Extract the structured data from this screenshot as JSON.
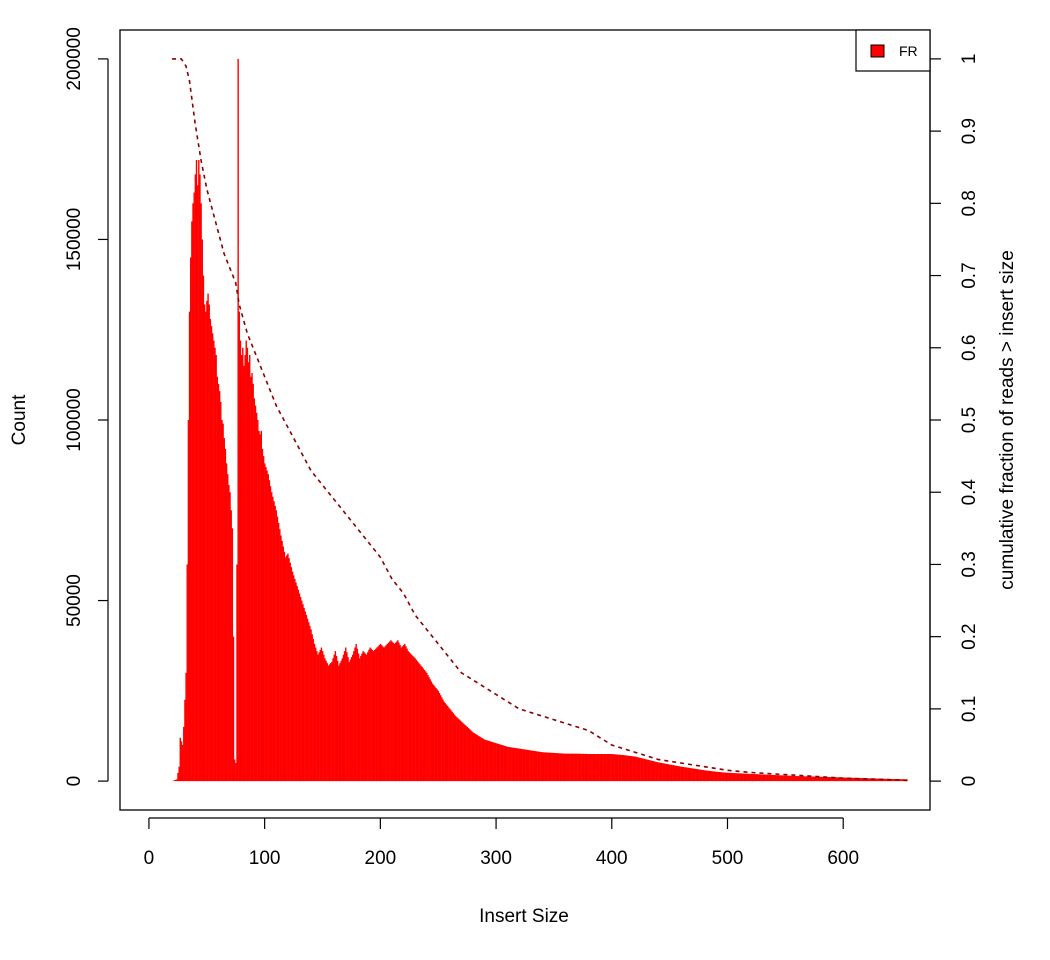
{
  "chart_data": {
    "type": "bar",
    "xlabel": "Insert Size",
    "ylabel": "Count",
    "y2label": "cumulative fraction of reads > insert size",
    "xlim": [
      -25,
      675
    ],
    "ylim": [
      -8000,
      208000
    ],
    "y2lim": [
      -0.04,
      1.04
    ],
    "x_ticks": [
      0,
      100,
      200,
      300,
      400,
      500,
      600
    ],
    "y_ticks": [
      0,
      50000,
      100000,
      150000,
      200000
    ],
    "y2_ticks": [
      0,
      0.1,
      0.2,
      0.3,
      0.4,
      0.5,
      0.6,
      0.7,
      0.8,
      0.9,
      1
    ],
    "grid": false,
    "legend": {
      "position": "top-right",
      "entries": [
        {
          "label": "FR",
          "color": "#ff0000"
        }
      ]
    },
    "colors": {
      "bars": "#ff0000",
      "cumulative_line": "#8b0000"
    },
    "series": [
      {
        "name": "FR",
        "kind": "histogram",
        "points": [
          [
            20,
            0
          ],
          [
            24,
            500
          ],
          [
            26,
            4000
          ],
          [
            27,
            12000
          ],
          [
            29,
            10000
          ],
          [
            30,
            15000
          ],
          [
            32,
            30000
          ],
          [
            33,
            60000
          ],
          [
            34,
            100000
          ],
          [
            35,
            130000
          ],
          [
            36,
            145000
          ],
          [
            37,
            155000
          ],
          [
            38,
            160000
          ],
          [
            39,
            163000
          ],
          [
            40,
            168000
          ],
          [
            41,
            172000
          ],
          [
            42,
            165000
          ],
          [
            43,
            172000
          ],
          [
            44,
            168000
          ],
          [
            45,
            160000
          ],
          [
            46,
            150000
          ],
          [
            47,
            140000
          ],
          [
            48,
            132000
          ],
          [
            49,
            130000
          ],
          [
            50,
            133000
          ],
          [
            51,
            135000
          ],
          [
            52,
            132000
          ],
          [
            53,
            128000
          ],
          [
            54,
            126000
          ],
          [
            55,
            124000
          ],
          [
            56,
            122000
          ],
          [
            57,
            120000
          ],
          [
            58,
            118000
          ],
          [
            59,
            112000
          ],
          [
            60,
            110000
          ],
          [
            61,
            108000
          ],
          [
            62,
            105000
          ],
          [
            63,
            100000
          ],
          [
            64,
            99000
          ],
          [
            65,
            95000
          ],
          [
            66,
            92000
          ],
          [
            67,
            88000
          ],
          [
            68,
            85000
          ],
          [
            69,
            82000
          ],
          [
            70,
            80000
          ],
          [
            71,
            75000
          ],
          [
            72,
            70000
          ],
          [
            73,
            40000
          ],
          [
            74,
            6000
          ],
          [
            75,
            5000
          ],
          [
            76,
            60000
          ],
          [
            77,
            200000
          ],
          [
            78,
            130000
          ],
          [
            79,
            122000
          ],
          [
            80,
            118000
          ],
          [
            81,
            120000
          ],
          [
            82,
            115000
          ],
          [
            83,
            118000
          ],
          [
            84,
            122000
          ],
          [
            85,
            120000
          ],
          [
            86,
            116000
          ],
          [
            87,
            118000
          ],
          [
            88,
            112000
          ],
          [
            89,
            113000
          ],
          [
            90,
            110000
          ],
          [
            91,
            106000
          ],
          [
            92,
            104000
          ],
          [
            93,
            102000
          ],
          [
            94,
            100000
          ],
          [
            95,
            97000
          ],
          [
            96,
            96000
          ],
          [
            97,
            97000
          ],
          [
            98,
            92000
          ],
          [
            100,
            88000
          ],
          [
            103,
            85000
          ],
          [
            106,
            80000
          ],
          [
            110,
            75000
          ],
          [
            114,
            68000
          ],
          [
            118,
            62000
          ],
          [
            120,
            63000
          ],
          [
            124,
            58000
          ],
          [
            128,
            54000
          ],
          [
            132,
            50000
          ],
          [
            136,
            46000
          ],
          [
            140,
            42000
          ],
          [
            143,
            38000
          ],
          [
            146,
            35000
          ],
          [
            149,
            37000
          ],
          [
            152,
            34000
          ],
          [
            155,
            32000
          ],
          [
            158,
            33000
          ],
          [
            161,
            36000
          ],
          [
            164,
            32000
          ],
          [
            167,
            34000
          ],
          [
            170,
            37000
          ],
          [
            173,
            33000
          ],
          [
            176,
            35000
          ],
          [
            179,
            38000
          ],
          [
            182,
            34000
          ],
          [
            185,
            36000
          ],
          [
            188,
            35000
          ],
          [
            191,
            37000
          ],
          [
            194,
            36000
          ],
          [
            197,
            37000
          ],
          [
            200,
            38000
          ],
          [
            203,
            37000
          ],
          [
            206,
            38000
          ],
          [
            209,
            39000
          ],
          [
            212,
            38000
          ],
          [
            215,
            39000
          ],
          [
            218,
            37000
          ],
          [
            221,
            38000
          ],
          [
            224,
            36000
          ],
          [
            227,
            35000
          ],
          [
            230,
            34000
          ],
          [
            235,
            32000
          ],
          [
            240,
            30000
          ],
          [
            245,
            27000
          ],
          [
            250,
            25000
          ],
          [
            255,
            22000
          ],
          [
            260,
            20000
          ],
          [
            265,
            18000
          ],
          [
            270,
            16500
          ],
          [
            275,
            15000
          ],
          [
            280,
            13500
          ],
          [
            285,
            12500
          ],
          [
            290,
            11500
          ],
          [
            295,
            11000
          ],
          [
            300,
            10500
          ],
          [
            310,
            9500
          ],
          [
            320,
            9000
          ],
          [
            330,
            8500
          ],
          [
            340,
            8000
          ],
          [
            350,
            7800
          ],
          [
            360,
            7600
          ],
          [
            370,
            7600
          ],
          [
            380,
            7500
          ],
          [
            390,
            7500
          ],
          [
            400,
            7500
          ],
          [
            410,
            7200
          ],
          [
            420,
            6800
          ],
          [
            430,
            6000
          ],
          [
            440,
            5200
          ],
          [
            450,
            4600
          ],
          [
            460,
            4000
          ],
          [
            470,
            3500
          ],
          [
            480,
            3000
          ],
          [
            490,
            2600
          ],
          [
            500,
            2300
          ],
          [
            520,
            2000
          ],
          [
            540,
            1700
          ],
          [
            560,
            1400
          ],
          [
            580,
            1200
          ],
          [
            600,
            1000
          ],
          [
            620,
            800
          ],
          [
            640,
            600
          ],
          [
            655,
            500
          ]
        ]
      },
      {
        "name": "cumulative",
        "kind": "line",
        "axis": "right",
        "points": [
          [
            20,
            1.0
          ],
          [
            25,
            1.0
          ],
          [
            28,
            1.0
          ],
          [
            32,
            0.99
          ],
          [
            35,
            0.97
          ],
          [
            40,
            0.91
          ],
          [
            45,
            0.86
          ],
          [
            50,
            0.82
          ],
          [
            55,
            0.79
          ],
          [
            60,
            0.76
          ],
          [
            65,
            0.73
          ],
          [
            70,
            0.71
          ],
          [
            75,
            0.69
          ],
          [
            78,
            0.66
          ],
          [
            85,
            0.62
          ],
          [
            90,
            0.6
          ],
          [
            100,
            0.56
          ],
          [
            110,
            0.52
          ],
          [
            120,
            0.49
          ],
          [
            130,
            0.46
          ],
          [
            140,
            0.43
          ],
          [
            150,
            0.41
          ],
          [
            160,
            0.39
          ],
          [
            170,
            0.37
          ],
          [
            180,
            0.35
          ],
          [
            190,
            0.33
          ],
          [
            200,
            0.31
          ],
          [
            210,
            0.28
          ],
          [
            220,
            0.26
          ],
          [
            230,
            0.23
          ],
          [
            240,
            0.21
          ],
          [
            250,
            0.19
          ],
          [
            260,
            0.17
          ],
          [
            270,
            0.15
          ],
          [
            280,
            0.14
          ],
          [
            290,
            0.13
          ],
          [
            300,
            0.12
          ],
          [
            320,
            0.1
          ],
          [
            340,
            0.09
          ],
          [
            360,
            0.08
          ],
          [
            380,
            0.07
          ],
          [
            400,
            0.05
          ],
          [
            420,
            0.04
          ],
          [
            440,
            0.03
          ],
          [
            460,
            0.025
          ],
          [
            480,
            0.02
          ],
          [
            500,
            0.015
          ],
          [
            520,
            0.012
          ],
          [
            540,
            0.01
          ],
          [
            560,
            0.008
          ],
          [
            580,
            0.006
          ],
          [
            600,
            0.004
          ],
          [
            620,
            0.003
          ],
          [
            640,
            0.002
          ],
          [
            655,
            0.001
          ]
        ]
      }
    ]
  }
}
